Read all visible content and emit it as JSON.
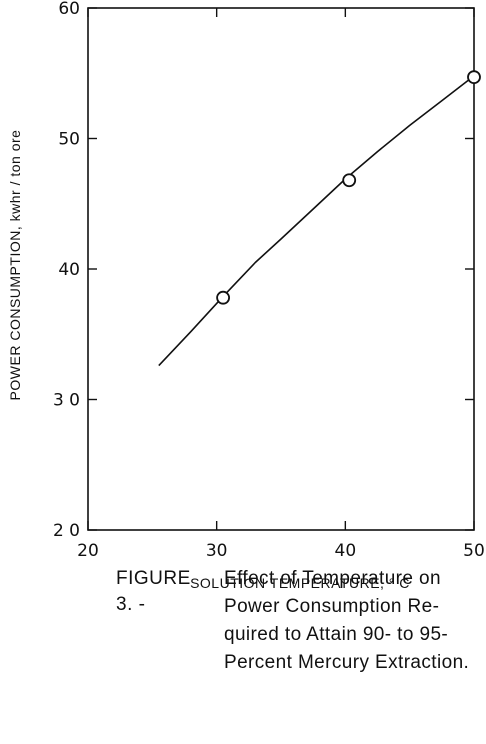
{
  "chart_data": {
    "type": "line",
    "title": "",
    "xlabel": "SOLUTION TEMPERATURE, ° C",
    "ylabel": "POWER CONSUMPTION, kwhr / ton ore",
    "xlim": [
      20,
      50
    ],
    "ylim": [
      20,
      60
    ],
    "xticks": [
      20,
      30,
      40,
      50
    ],
    "yticks": [
      20,
      30,
      40,
      50,
      60
    ],
    "xtick_labels": [
      "20",
      "30",
      "40",
      "50"
    ],
    "ytick_labels": [
      "2 0",
      "3 0",
      "40",
      "50",
      "60"
    ],
    "grid": false,
    "series": [
      {
        "curve_x": [
          25.5,
          28,
          30.5,
          33,
          35,
          37.5,
          40,
          42.5,
          45,
          47.5,
          50
        ],
        "curve_y": [
          32.6,
          35.2,
          37.9,
          40.5,
          42.3,
          44.6,
          46.9,
          49.0,
          51.0,
          52.9,
          54.8
        ],
        "points_x": [
          30.5,
          40.3,
          50
        ],
        "points_y": [
          37.8,
          46.8,
          54.7
        ]
      }
    ]
  },
  "caption": {
    "label": "FIGURE 3. -",
    "lines": [
      "Effect of Temperature on",
      "Power Consumption Re-",
      "quired to Attain 90- to 95-",
      "Percent Mercury Extraction."
    ]
  }
}
